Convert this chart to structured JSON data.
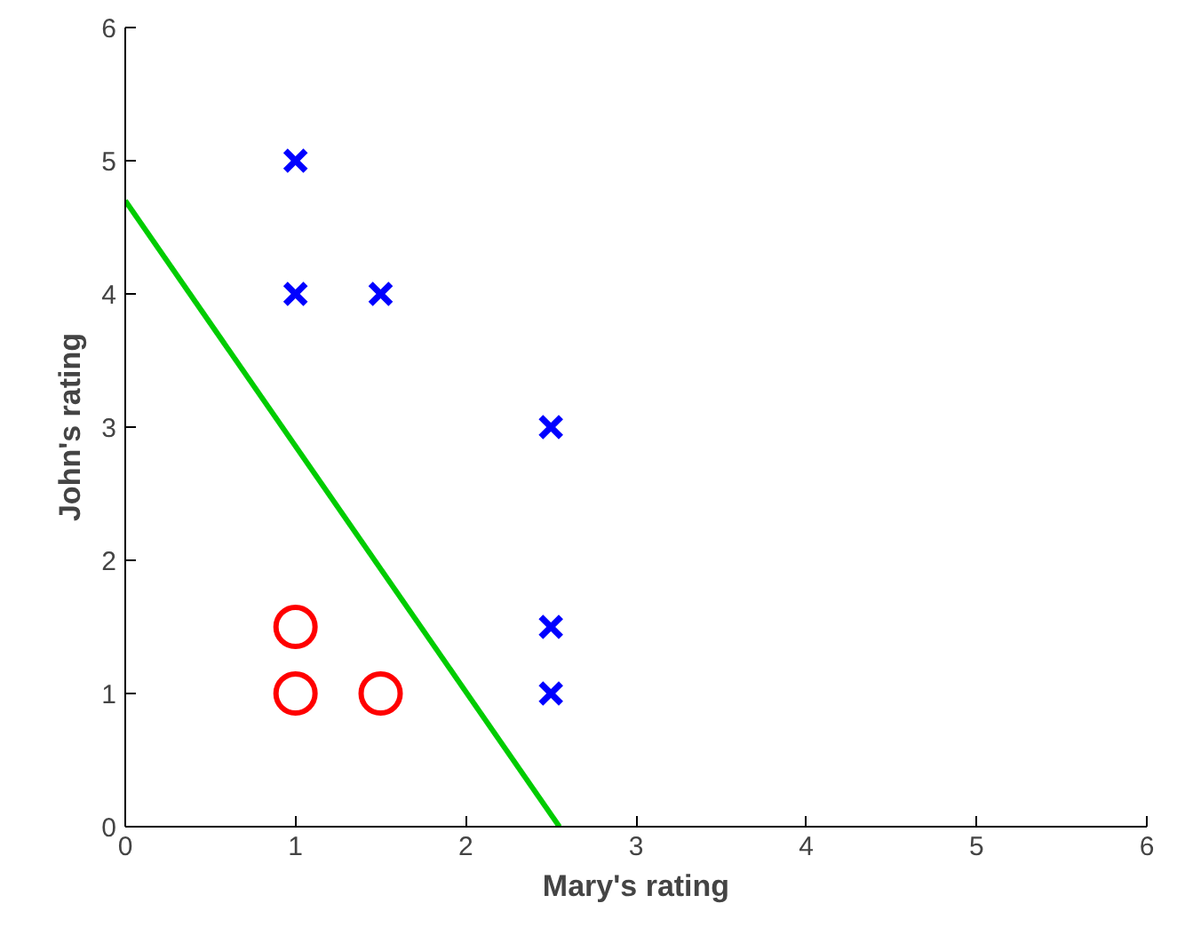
{
  "chart_data": {
    "type": "scatter",
    "xlabel": "Mary's rating",
    "ylabel": "John's rating",
    "xlim": [
      0,
      6
    ],
    "ylim": [
      0,
      6
    ],
    "xticks": [
      0,
      1,
      2,
      3,
      4,
      5,
      6
    ],
    "yticks": [
      0,
      1,
      2,
      3,
      4,
      5,
      6
    ],
    "grid": false,
    "series": [
      {
        "marker": "cross",
        "color": "#0000ff",
        "x": [
          1,
          1,
          1.5,
          2.5,
          2.5,
          2.5
        ],
        "values": [
          5,
          4,
          4,
          3,
          1.5,
          1
        ]
      },
      {
        "marker": "circle",
        "color": "#ff0000",
        "x": [
          1,
          1,
          1.5
        ],
        "values": [
          1.5,
          1,
          1
        ]
      },
      {
        "type": "line",
        "line_style": "solid",
        "color": "#00cc00",
        "x": [
          0,
          2.55
        ],
        "values": [
          4.7,
          0
        ]
      }
    ]
  }
}
